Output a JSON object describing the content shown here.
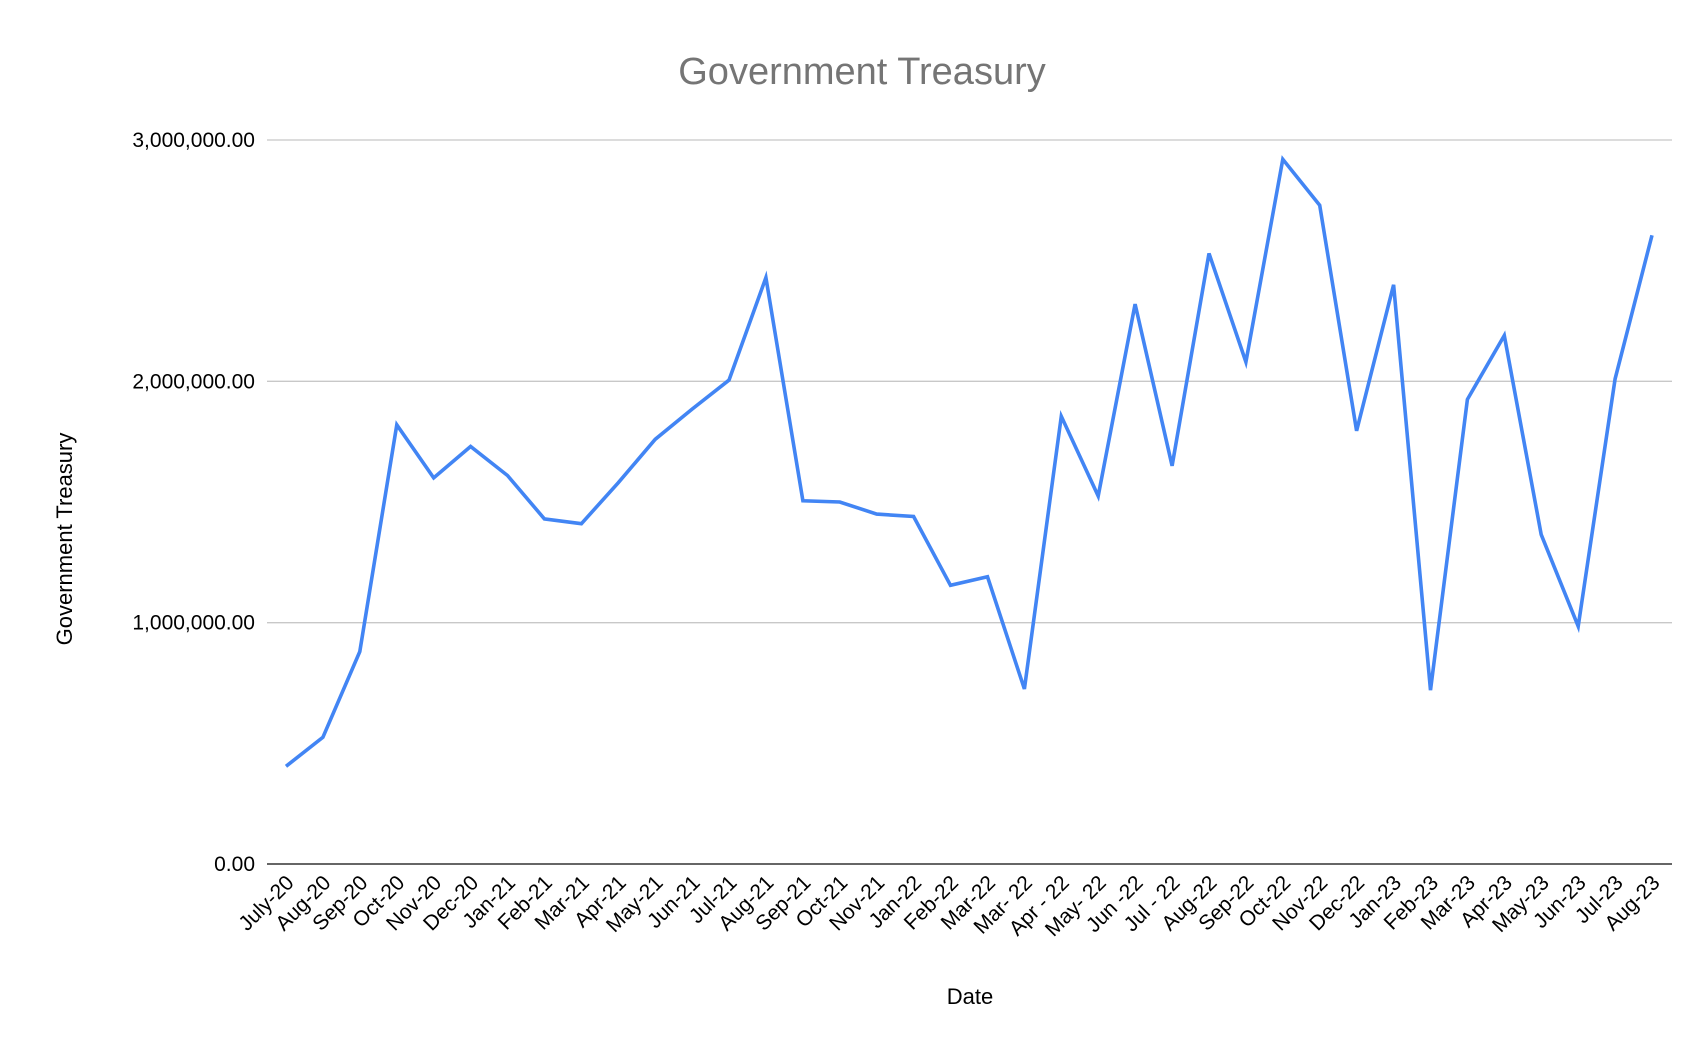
{
  "chart_data": {
    "type": "line",
    "title": "Government Treasury",
    "xlabel": "Date",
    "ylabel": "Government Treasury",
    "ylim": [
      0,
      3000000
    ],
    "yticks": [
      0,
      1000000,
      2000000,
      3000000
    ],
    "ytick_labels": [
      "0.00",
      "1,000,000.00",
      "2,000,000.00",
      "3,000,000.00"
    ],
    "grid": true,
    "legend": "none",
    "categories": [
      "July-20",
      "Aug-20",
      "Sep-20",
      "Oct-20",
      "Nov-20",
      "Dec-20",
      "Jan-21",
      "Feb-21",
      "Mar-21",
      "Apr-21",
      "May-21",
      "Jun-21",
      "Jul-21",
      "Aug-21",
      "Sep-21",
      "Oct-21",
      "Nov-21",
      "Jan-22",
      "Feb-22",
      "Mar-22",
      "Mar- 22",
      "Apr - 22",
      "May- 22",
      "Jun -22",
      "Jul - 22",
      "Aug-22",
      "Sep-22",
      "Oct-22",
      "Nov-22",
      "Dec-22",
      "Jan-23",
      "Feb-23",
      "Mar-23",
      "Apr-23",
      "May-23",
      "Jun-23",
      "Jul-23",
      "Aug-23"
    ],
    "series": [
      {
        "name": "",
        "color": "#4285F4",
        "values": [
          405000,
          525000,
          880000,
          1820000,
          1600000,
          1730000,
          1610000,
          1430000,
          1410000,
          1580000,
          1760000,
          1885000,
          2005000,
          2430000,
          1505000,
          1500000,
          1450000,
          1440000,
          1155000,
          1190000,
          725000,
          1855000,
          1525000,
          2320000,
          1650000,
          2530000,
          2080000,
          2920000,
          2730000,
          1795000,
          2400000,
          720000,
          1925000,
          2190000,
          1365000,
          985000,
          2010000,
          2605000
        ]
      }
    ]
  }
}
